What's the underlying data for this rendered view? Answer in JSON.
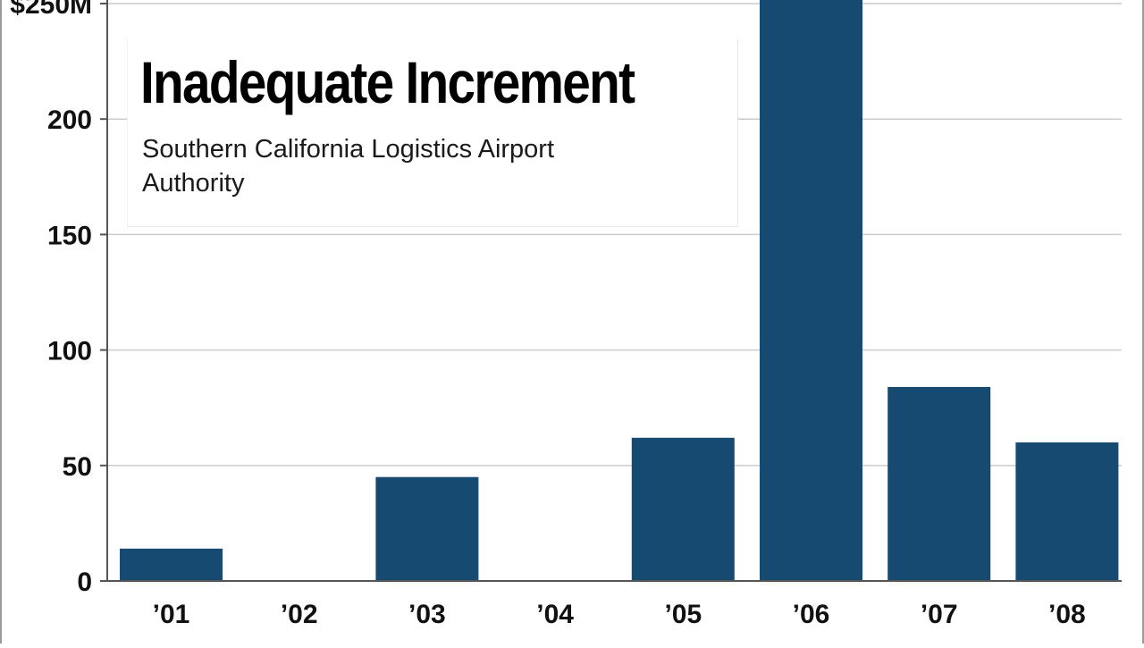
{
  "chart_data": {
    "type": "bar",
    "title": "Inadequate Increment",
    "subtitle": "Southern California Logistics Airport Authority",
    "xlabel": "",
    "ylabel": "",
    "categories": [
      "’01",
      "’02",
      "’03",
      "’04",
      "’05",
      "’06",
      "’07",
      "’08"
    ],
    "values": [
      14,
      0,
      45,
      0,
      62,
      252,
      84,
      60
    ],
    "ylim": [
      0,
      250
    ],
    "y_ticks": [
      {
        "value": 0,
        "label": "0"
      },
      {
        "value": 50,
        "label": "50"
      },
      {
        "value": 100,
        "label": "100"
      },
      {
        "value": 150,
        "label": "150"
      },
      {
        "value": 200,
        "label": "200"
      },
      {
        "value": 250,
        "label": "$250M"
      }
    ],
    "grid": true,
    "bar_color": "#174a70",
    "grid_color": "#cccccc",
    "axis_color": "#555555"
  }
}
